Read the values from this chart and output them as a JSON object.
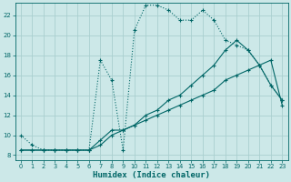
{
  "xlabel": "Humidex (Indice chaleur)",
  "bg_color": "#cce8e8",
  "grid_color": "#aacfcf",
  "line_color": "#006666",
  "xlim": [
    -0.5,
    23.5
  ],
  "ylim": [
    7.5,
    23.2
  ],
  "xticks": [
    0,
    1,
    2,
    3,
    4,
    5,
    6,
    7,
    8,
    9,
    10,
    11,
    12,
    13,
    14,
    15,
    16,
    17,
    18,
    19,
    20,
    21,
    22,
    23
  ],
  "yticks": [
    8,
    10,
    12,
    14,
    16,
    18,
    20,
    22
  ],
  "series1_x": [
    0,
    1,
    2,
    3,
    4,
    5,
    6,
    7,
    8,
    9,
    10,
    11,
    12,
    13,
    14,
    15,
    16,
    17,
    18,
    19,
    20,
    21,
    22,
    23
  ],
  "series1_y": [
    10.0,
    9.0,
    8.5,
    8.5,
    8.5,
    8.5,
    8.5,
    17.5,
    15.5,
    8.5,
    20.5,
    23.0,
    23.0,
    22.5,
    21.5,
    21.5,
    22.5,
    21.5,
    19.5,
    19.0,
    18.5,
    17.0,
    15.0,
    13.5
  ],
  "series2_x": [
    0,
    1,
    2,
    3,
    4,
    5,
    6,
    7,
    8,
    9,
    10,
    11,
    12,
    13,
    14,
    15,
    16,
    17,
    18,
    19,
    20,
    21,
    22,
    23
  ],
  "series2_y": [
    8.5,
    8.5,
    8.5,
    8.5,
    8.5,
    8.5,
    8.5,
    9.5,
    10.5,
    10.5,
    11.0,
    11.5,
    12.0,
    12.5,
    13.0,
    13.5,
    14.0,
    14.5,
    15.5,
    16.0,
    16.5,
    17.0,
    17.5,
    13.0
  ],
  "series3_x": [
    0,
    1,
    2,
    3,
    4,
    5,
    6,
    7,
    8,
    9,
    10,
    11,
    12,
    13,
    14,
    15,
    16,
    17,
    18,
    19,
    20,
    21,
    22,
    23
  ],
  "series3_y": [
    8.5,
    8.5,
    8.5,
    8.5,
    8.5,
    8.5,
    8.5,
    9.0,
    10.0,
    10.5,
    11.0,
    12.0,
    12.5,
    13.5,
    14.0,
    15.0,
    16.0,
    17.0,
    18.5,
    19.5,
    18.5,
    17.0,
    15.0,
    13.5
  ]
}
